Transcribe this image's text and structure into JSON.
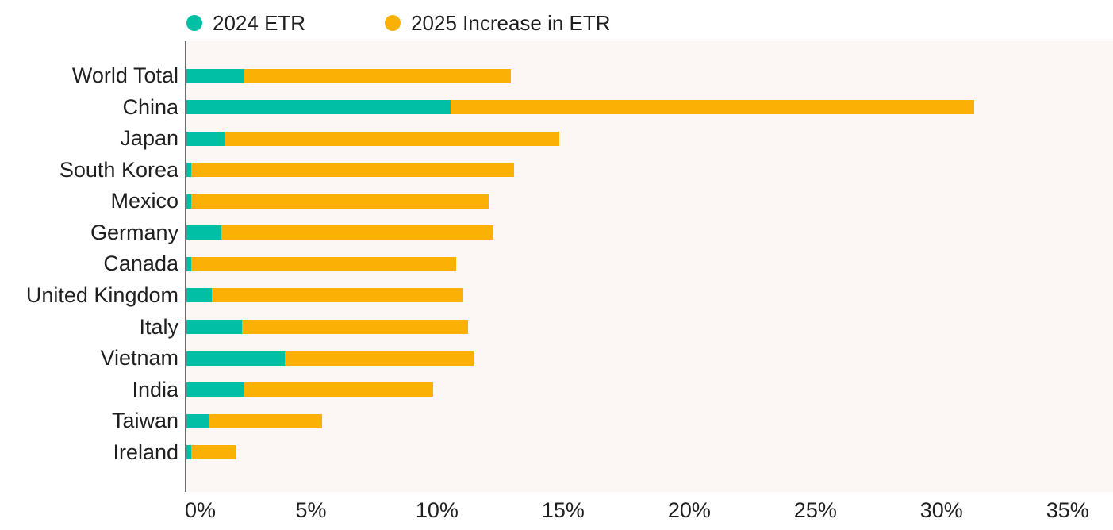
{
  "figure": {
    "background": "#ffffff",
    "plot_background": "#fcf7f5",
    "axis_color": "#6f6f6f",
    "text_color": "#1f1f1f"
  },
  "legend": {
    "items": [
      {
        "label": "2024 ETR",
        "color": "#00bfa5",
        "icon": "teal-dot-icon"
      },
      {
        "label": "2025 Increase in ETR",
        "color": "#fab005",
        "icon": "orange-dot-icon"
      }
    ]
  },
  "chart_data": {
    "type": "bar",
    "orientation": "horizontal",
    "stacked": true,
    "title": "",
    "xlabel": "",
    "ylabel": "",
    "unit": "%",
    "grid": false,
    "legend_position": "top",
    "categories": [
      "World Total",
      "China",
      "Japan",
      "South Korea",
      "Mexico",
      "Germany",
      "Canada",
      "United Kingdom",
      "Italy",
      "Vietnam",
      "India",
      "Taiwan",
      "Ireland"
    ],
    "series": [
      {
        "name": "2024 ETR",
        "color": "#00bfa5",
        "values": [
          2.3,
          10.5,
          1.5,
          0.2,
          0.2,
          1.4,
          0.2,
          1.0,
          2.2,
          3.9,
          2.3,
          0.9,
          0.2
        ]
      },
      {
        "name": "2025 Increase in ETR",
        "color": "#fab005",
        "values": [
          10.6,
          20.8,
          13.3,
          12.8,
          11.8,
          10.8,
          10.5,
          10.0,
          9.0,
          7.5,
          7.5,
          4.5,
          1.8
        ]
      }
    ],
    "stacked_totals": [
      12.9,
      31.3,
      14.8,
      13.0,
      12.0,
      12.2,
      10.7,
      11.0,
      11.2,
      11.4,
      9.8,
      5.4,
      2.0
    ],
    "x_ticks": [
      "0%",
      "5%",
      "10%",
      "15%",
      "20%",
      "25%",
      "30%",
      "35%"
    ],
    "x_tick_values": [
      0,
      5,
      10,
      15,
      20,
      25,
      30,
      35
    ],
    "xlim": [
      0,
      35
    ],
    "x_axis_display_max": 36.8
  }
}
